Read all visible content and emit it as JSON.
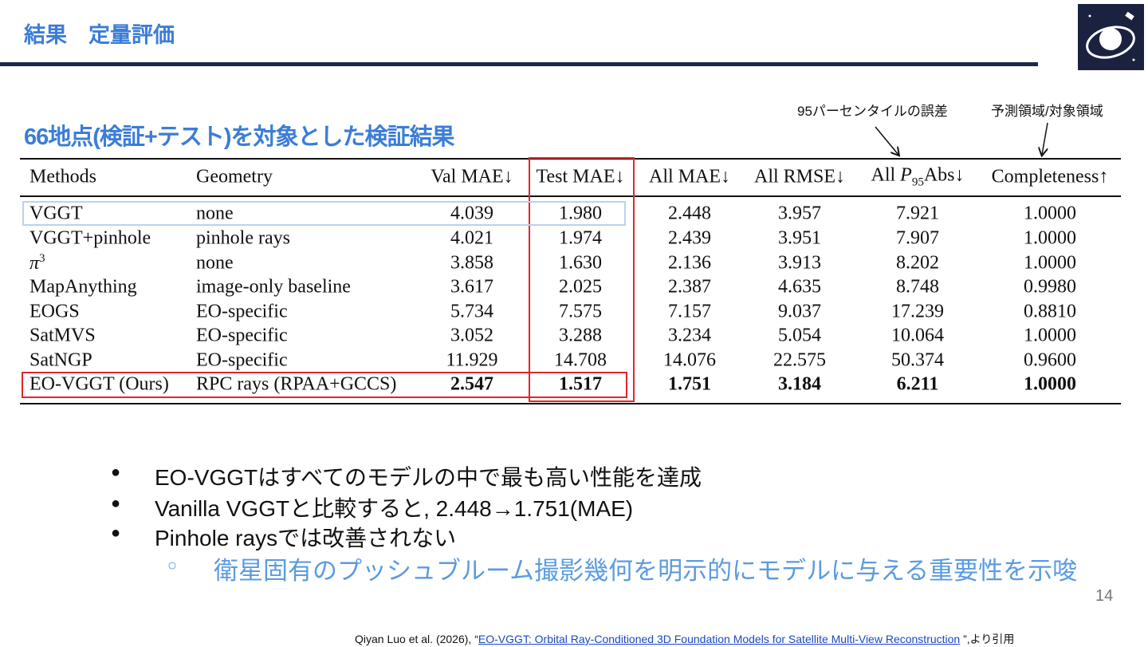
{
  "header": {
    "title": "結果　定量評価"
  },
  "subtitle": "66地点(検証+テスト)を対象とした検証結果",
  "annotations": [
    "95パーセンタイルの誤差",
    "予測領域/対象領域"
  ],
  "table": {
    "columns": [
      "Methods",
      "Geometry",
      "Val MAE↓",
      "Test MAE↓",
      "All MAE↓",
      "All RMSE↓",
      {
        "prefix": "All ",
        "var": "P",
        "sub": "95",
        "suffix": "Abs↓"
      },
      "Completeness↑"
    ],
    "rows": [
      [
        "VGGT",
        "none",
        "4.039",
        "1.980",
        "2.448",
        "3.957",
        "7.921",
        "1.0000"
      ],
      [
        "VGGT+pinhole",
        "pinhole rays",
        "4.021",
        "1.974",
        "2.439",
        "3.951",
        "7.907",
        "1.0000"
      ],
      [
        {
          "base": "π",
          "sup": "3"
        },
        "none",
        "3.858",
        "1.630",
        "2.136",
        "3.913",
        "8.202",
        "1.0000"
      ],
      [
        "MapAnything",
        "image-only baseline",
        "3.617",
        "2.025",
        "2.387",
        "4.635",
        "8.748",
        "0.9980"
      ],
      [
        "EOGS",
        "EO-specific",
        "5.734",
        "7.575",
        "7.157",
        "9.037",
        "17.239",
        "0.8810"
      ],
      [
        "SatMVS",
        "EO-specific",
        "3.052",
        "3.288",
        "3.234",
        "5.054",
        "10.064",
        "1.0000"
      ],
      [
        "SatNGP",
        "EO-specific",
        "11.929",
        "14.708",
        "14.076",
        "22.575",
        "50.374",
        "0.9600"
      ],
      [
        "EO-VGGT (Ours)",
        "RPC rays (RPAA+GCCS)",
        "2.547",
        "1.517",
        "1.751",
        "3.184",
        "6.211",
        "1.0000"
      ]
    ]
  },
  "bullets": [
    "EO-VGGTはすべてのモデルの中で最も高い性能を達成",
    "Vanilla VGGTと比較すると, 2.448→1.751(MAE)",
    "Pinhole raysでは改善されない"
  ],
  "sub_bullets": [
    "衛星固有のプッシュブルーム撮影幾何を明示的にモデルに与える重要性を示唆"
  ],
  "page_number": "14",
  "citation": {
    "prefix": "Qiyan Luo et al. (2026), “",
    "link": "EO-VGGT: Orbital Ray-Conditioned 3D Foundation Models for Satellite Multi-View Reconstruction",
    "suffix": " ”,より引用"
  }
}
